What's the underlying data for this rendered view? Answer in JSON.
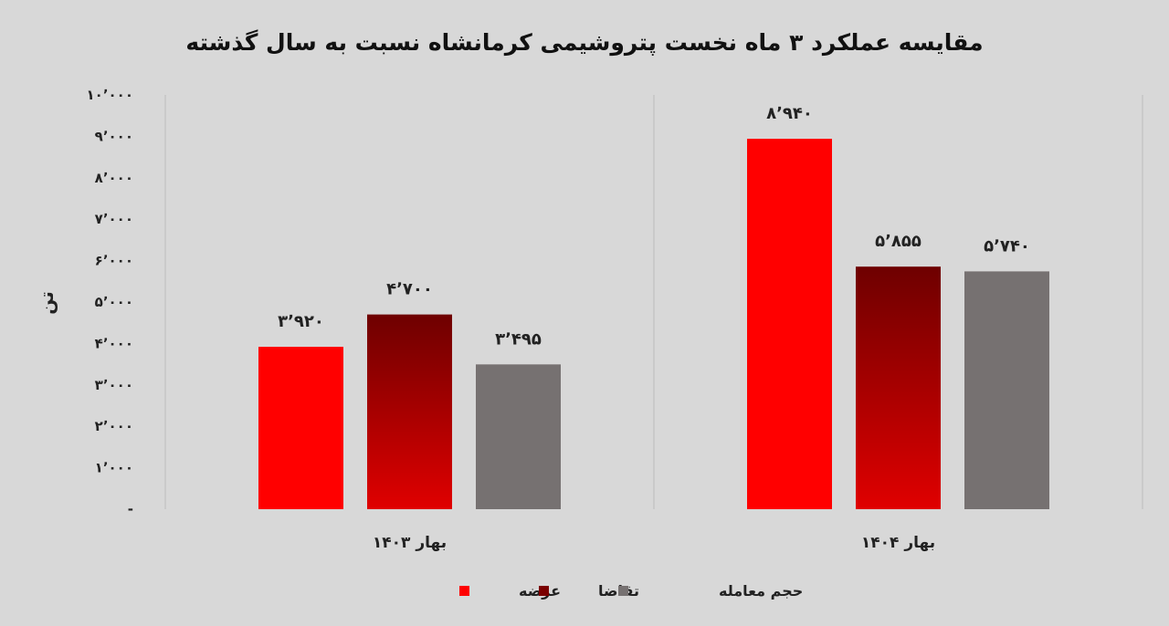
{
  "chart_data": {
    "type": "bar",
    "title": "مقایسه عملکرد ۳ ماه نخست پتروشیمی کرمانشاه نسبت به سال گذشته",
    "ylabel": "تن",
    "xlabel": "",
    "ylim": [
      0,
      10000
    ],
    "yticks": [
      0,
      1000,
      2000,
      3000,
      4000,
      5000,
      6000,
      7000,
      8000,
      9000,
      10000
    ],
    "ytick_labels": [
      "-",
      "۱٬۰۰۰",
      "۲٬۰۰۰",
      "۳٬۰۰۰",
      "۴٬۰۰۰",
      "۵٬۰۰۰",
      "۶٬۰۰۰",
      "۷٬۰۰۰",
      "۸٬۰۰۰",
      "۹٬۰۰۰",
      "۱۰٬۰۰۰"
    ],
    "categories": [
      "بهار ۱۴۰۳",
      "بهار ۱۴۰۴"
    ],
    "series": [
      {
        "name": "عرضه",
        "values": [
          3920,
          8940
        ],
        "labels": [
          "۳٬۹۲۰",
          "۸٬۹۴۰"
        ],
        "color": "#ff0000",
        "color_dark": "#ff0000"
      },
      {
        "name": "تقاضا",
        "values": [
          4700,
          5855
        ],
        "labels": [
          "۴٬۷۰۰",
          "۵٬۸۵۵"
        ],
        "color": "#e00000",
        "color_dark": "#7a0000"
      },
      {
        "name": "حجم معامله",
        "values": [
          3495,
          5740
        ],
        "labels": [
          "۳٬۴۹۵",
          "۵٬۷۴۰"
        ],
        "color": "#767171",
        "color_dark": "#767171"
      }
    ],
    "grid": false,
    "legend_position": "bottom"
  }
}
